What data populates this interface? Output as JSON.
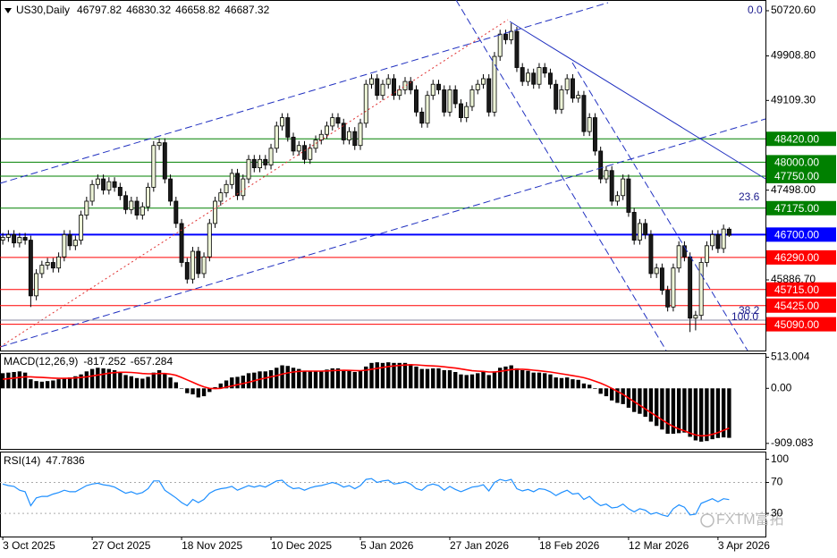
{
  "chart_data": [
    {
      "type": "candlestick",
      "title": "US30,Daily",
      "open": [
        46600,
        46650,
        46700,
        46550,
        46650,
        46600,
        45600,
        46000,
        46150,
        46200,
        46100,
        46300,
        46700,
        46500,
        46600,
        47050,
        47300,
        47600,
        47700,
        47500,
        47650,
        47550,
        47400,
        47150,
        47300,
        47050,
        47200,
        47550,
        48300,
        48350,
        47700,
        47300,
        46900,
        46200,
        45900,
        46400,
        46000,
        46300,
        46900,
        47300,
        47450,
        47600,
        47800,
        47400,
        47700,
        48050,
        47900,
        48050,
        47950,
        48250,
        48650,
        48800,
        48450,
        48200,
        48300,
        48050,
        48250,
        48400,
        48500,
        48650,
        48800,
        48700,
        48400,
        48550,
        48300,
        48700,
        49400,
        49500,
        49200,
        49400,
        49500,
        49200,
        49300,
        49450,
        49300,
        48900,
        48700,
        49200,
        49400,
        49300,
        48900,
        49300,
        49050,
        48800,
        49000,
        49300,
        49400,
        49500,
        48900,
        49900,
        50300,
        50200,
        50350,
        49700,
        49450,
        49600,
        49400,
        49700,
        49600,
        49400,
        48950,
        49300,
        49500,
        49150,
        49200,
        48550,
        48800,
        48200,
        47700,
        47850,
        47300,
        47400,
        47700,
        47100,
        46600,
        46900,
        46700,
        46000,
        46100,
        45700,
        45400,
        46100,
        46500,
        46300,
        45200,
        45250,
        46200,
        46500,
        46700,
        46450,
        46797.82
      ],
      "high": [
        46730,
        46780,
        46780,
        46730,
        46730,
        46680,
        46080,
        46230,
        46280,
        46280,
        46380,
        46780,
        46780,
        46680,
        47130,
        47380,
        47680,
        47780,
        47780,
        47730,
        47730,
        47630,
        47480,
        47380,
        47380,
        47280,
        47630,
        48380,
        48430,
        48430,
        47780,
        47380,
        46980,
        46280,
        46480,
        46480,
        46380,
        46980,
        47380,
        47530,
        47680,
        47880,
        47880,
        47780,
        48130,
        48130,
        48130,
        48130,
        48330,
        48730,
        48880,
        48880,
        48530,
        48380,
        48380,
        48330,
        48480,
        48580,
        48730,
        48880,
        48880,
        48780,
        48630,
        48630,
        48780,
        49480,
        49580,
        49580,
        49480,
        49580,
        49580,
        49380,
        49530,
        49530,
        49380,
        48980,
        49280,
        49480,
        49480,
        49380,
        49380,
        49380,
        49130,
        49080,
        49380,
        49480,
        49580,
        49580,
        49980,
        50380,
        50380,
        50500,
        50430,
        49780,
        49680,
        49680,
        49780,
        49780,
        49680,
        49480,
        49380,
        49580,
        49580,
        49280,
        49280,
        48880,
        48880,
        48280,
        47930,
        47930,
        47480,
        47780,
        47780,
        47180,
        46980,
        46980,
        46780,
        46180,
        46180,
        45780,
        46180,
        46580,
        46580,
        46380,
        45330,
        46280,
        46580,
        46780,
        46780,
        46880,
        46830.32
      ],
      "low": [
        46520,
        46570,
        46470,
        46470,
        46520,
        45400,
        45520,
        45920,
        46070,
        46020,
        46020,
        46220,
        46420,
        46420,
        46520,
        46970,
        47220,
        47520,
        47420,
        47420,
        47470,
        47320,
        47070,
        47070,
        46970,
        46970,
        47120,
        47470,
        48220,
        47620,
        47220,
        46820,
        46120,
        45820,
        45820,
        45920,
        45920,
        46220,
        46820,
        47220,
        47370,
        47520,
        47320,
        47320,
        47620,
        47820,
        47820,
        47870,
        47870,
        48170,
        48570,
        48370,
        48120,
        48120,
        47970,
        47970,
        48170,
        48320,
        48420,
        48570,
        48620,
        48320,
        48320,
        48220,
        48220,
        48620,
        49320,
        49120,
        49120,
        49320,
        49120,
        49120,
        49220,
        49220,
        48820,
        48620,
        48620,
        49120,
        49220,
        48820,
        48820,
        48970,
        48720,
        48720,
        48920,
        49220,
        49320,
        48820,
        48820,
        49820,
        50120,
        50120,
        49620,
        49370,
        49370,
        49320,
        49320,
        49520,
        49320,
        48870,
        48870,
        49220,
        49070,
        49070,
        48470,
        48470,
        48120,
        47620,
        47620,
        47220,
        47220,
        47320,
        47020,
        46520,
        46520,
        46620,
        45920,
        45920,
        45620,
        45320,
        45320,
        46020,
        46220,
        44950,
        44980,
        45170,
        46120,
        46420,
        46370,
        46370,
        46658.82
      ],
      "close": [
        46650,
        46700,
        46550,
        46650,
        46600,
        45600,
        46000,
        46150,
        46200,
        46100,
        46300,
        46700,
        46500,
        46600,
        47050,
        47300,
        47600,
        47700,
        47500,
        47650,
        47550,
        47400,
        47150,
        47300,
        47050,
        47200,
        47550,
        48300,
        48350,
        47700,
        47300,
        46900,
        46200,
        45900,
        46400,
        46000,
        46300,
        46900,
        47300,
        47450,
        47600,
        47800,
        47400,
        47700,
        48050,
        47900,
        48050,
        47950,
        48250,
        48650,
        48800,
        48450,
        48200,
        48300,
        48050,
        48250,
        48400,
        48500,
        48650,
        48800,
        48700,
        48400,
        48550,
        48300,
        48700,
        49400,
        49500,
        49200,
        49400,
        49500,
        49200,
        49300,
        49450,
        49300,
        48900,
        48700,
        49200,
        49400,
        49300,
        48900,
        49300,
        49050,
        48800,
        49000,
        49300,
        49400,
        49500,
        48900,
        49900,
        50300,
        50200,
        50350,
        49700,
        49450,
        49600,
        49400,
        49700,
        49600,
        49400,
        48950,
        49300,
        49500,
        49150,
        49200,
        48550,
        48800,
        48200,
        47700,
        47850,
        47300,
        47400,
        47700,
        47100,
        46600,
        46900,
        46700,
        46000,
        46100,
        45700,
        45400,
        46100,
        46500,
        46300,
        45200,
        45250,
        46200,
        46500,
        46700,
        46450,
        46800,
        46687.32
      ],
      "bull_color": "#eef5d8",
      "bear_color": "#1a1a1a",
      "outline_color": "#000000",
      "xlim": [
        -0.5,
        136.5
      ],
      "xticks": [
        {
          "value": 0,
          "label": "3 Oct 2025"
        },
        {
          "value": 16,
          "label": "27 Oct 2025"
        },
        {
          "value": 32,
          "label": "18 Nov 2025"
        },
        {
          "value": 48,
          "label": "10 Dec 2025"
        },
        {
          "value": 64,
          "label": "5 Jan 2026"
        },
        {
          "value": 80,
          "label": "27 Jan 2026"
        },
        {
          "value": 96,
          "label": "18 Feb 2026"
        },
        {
          "value": 112,
          "label": "12 Mar 2026"
        },
        {
          "value": 128,
          "label": "3 Apr 2026"
        }
      ],
      "ylim": [
        44618,
        50913
      ],
      "yticks": [
        {
          "value": 50720.6,
          "label": "50720.60"
        },
        {
          "value": 49908.8,
          "label": "49908.80"
        },
        {
          "value": 49109.3,
          "label": "49109.30"
        },
        {
          "value": 47498,
          "label": "47498.00"
        },
        {
          "value": 45886.7,
          "label": "45886.70"
        }
      ],
      "levels": [
        {
          "value": 48420,
          "label": "48420.00",
          "color": "#008000"
        },
        {
          "value": 48000,
          "label": "48000.00",
          "color": "#008000"
        },
        {
          "value": 47750,
          "label": "47750.00",
          "color": "#008000"
        },
        {
          "value": 47175,
          "label": "47175.00",
          "color": "#008000"
        },
        {
          "value": 46700,
          "label": "46700.00",
          "color": "#0000ff"
        },
        {
          "value": 46290,
          "label": "46290.00",
          "color": "#ff0000"
        },
        {
          "value": 45715,
          "label": "45715.00",
          "color": "#ff0000"
        },
        {
          "value": 45425,
          "label": "45425.00",
          "color": "#ff0000"
        },
        {
          "value": 45090,
          "label": "45090.00",
          "color": "#ff0000"
        }
      ],
      "fib_labels": [
        "0.0",
        "23.6",
        "38.2",
        "100.0"
      ]
    },
    {
      "type": "macd",
      "title": "MACD(12,26,9)",
      "histogram": [
        250,
        260,
        270,
        280,
        260,
        150,
        120,
        110,
        120,
        130,
        150,
        170,
        180,
        200,
        230,
        280,
        320,
        340,
        330,
        320,
        300,
        260,
        220,
        200,
        170,
        160,
        190,
        260,
        300,
        250,
        180,
        100,
        0,
        -80,
        -100,
        -150,
        -130,
        -60,
        20,
        80,
        130,
        180,
        190,
        210,
        250,
        260,
        280,
        280,
        300,
        340,
        380,
        370,
        340,
        320,
        290,
        280,
        280,
        290,
        310,
        330,
        330,
        300,
        290,
        270,
        290,
        360,
        420,
        430,
        420,
        430,
        420,
        420,
        420,
        400,
        360,
        320,
        320,
        330,
        330,
        300,
        300,
        270,
        230,
        220,
        230,
        250,
        270,
        220,
        280,
        340,
        360,
        380,
        330,
        300,
        290,
        260,
        260,
        250,
        230,
        180,
        170,
        180,
        150,
        140,
        80,
        60,
        -10,
        -90,
        -130,
        -200,
        -240,
        -260,
        -320,
        -390,
        -420,
        -470,
        -550,
        -620,
        -680,
        -750,
        -750,
        -740,
        -730,
        -800,
        -860,
        -880,
        -870,
        -840,
        -820,
        -810,
        -817.252
      ],
      "signal": [
        150,
        160,
        170,
        180,
        190,
        190,
        185,
        180,
        175,
        170,
        165,
        165,
        168,
        172,
        180,
        190,
        205,
        220,
        235,
        250,
        260,
        265,
        265,
        262,
        255,
        245,
        240,
        240,
        245,
        245,
        235,
        215,
        180,
        140,
        100,
        60,
        25,
        0,
        -5,
        0,
        20,
        40,
        60,
        80,
        100,
        125,
        150,
        170,
        190,
        210,
        235,
        255,
        270,
        280,
        285,
        285,
        285,
        285,
        288,
        292,
        297,
        298,
        297,
        293,
        292,
        300,
        315,
        330,
        345,
        360,
        370,
        378,
        385,
        390,
        388,
        380,
        375,
        370,
        365,
        355,
        345,
        335,
        320,
        305,
        290,
        285,
        280,
        270,
        270,
        280,
        295,
        310,
        315,
        315,
        310,
        300,
        290,
        280,
        270,
        255,
        240,
        225,
        210,
        195,
        175,
        150,
        120,
        85,
        45,
        0,
        -50,
        -100,
        -160,
        -220,
        -280,
        -340,
        -400,
        -460,
        -520,
        -580,
        -630,
        -670,
        -700,
        -740,
        -770,
        -785,
        -780,
        -760,
        -730,
        -695,
        -657.284
      ],
      "histogram_color": "#000000",
      "signal_color": "#ff0000",
      "ylim": [
        -1000,
        580
      ],
      "yticks": [
        {
          "value": 513.004,
          "label": "513.004"
        },
        {
          "value": 0,
          "label": "0.00"
        },
        {
          "value": -909.083,
          "label": "-909.083"
        }
      ]
    },
    {
      "type": "line",
      "title": "RSI(14)",
      "values": [
        68,
        66,
        65,
        60,
        58,
        40,
        50,
        52,
        52,
        55,
        57,
        60,
        58,
        58,
        62,
        66,
        68,
        69,
        67,
        66,
        64,
        60,
        56,
        58,
        55,
        57,
        62,
        72,
        72,
        60,
        55,
        50,
        44,
        40,
        48,
        44,
        48,
        56,
        60,
        62,
        63,
        65,
        60,
        63,
        66,
        64,
        66,
        64,
        68,
        72,
        73,
        66,
        62,
        63,
        60,
        63,
        65,
        66,
        68,
        70,
        68,
        64,
        66,
        62,
        66,
        74,
        75,
        70,
        72,
        73,
        68,
        69,
        71,
        68,
        62,
        60,
        66,
        68,
        66,
        60,
        65,
        61,
        58,
        61,
        64,
        65,
        67,
        59,
        70,
        74,
        72,
        74,
        62,
        59,
        61,
        58,
        62,
        61,
        58,
        53,
        57,
        60,
        55,
        56,
        48,
        52,
        45,
        40,
        42,
        37,
        38,
        42,
        36,
        32,
        36,
        34,
        29,
        31,
        28,
        26,
        36,
        41,
        38,
        28,
        29,
        43,
        46,
        49,
        45,
        49,
        47.7836
      ],
      "color": "#1e8fff",
      "ylim": [
        0,
        110
      ],
      "yticks": [
        100,
        70,
        30
      ],
      "grid": true
    }
  ],
  "watermark": "FXTM富拓"
}
